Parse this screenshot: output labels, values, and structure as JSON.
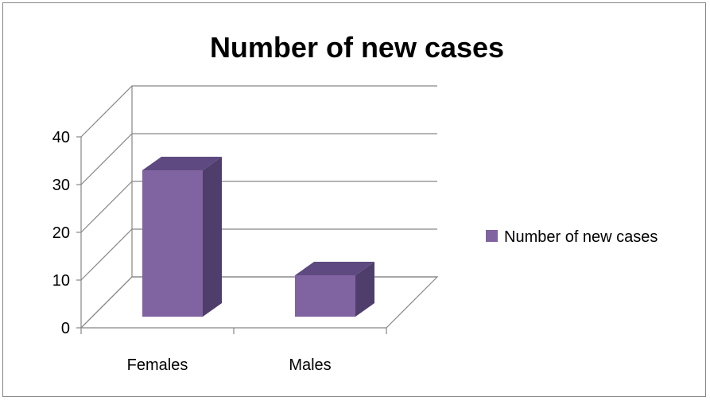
{
  "chart_data": {
    "type": "bar",
    "title": "Number of new cases",
    "categories": [
      "Females",
      "Males"
    ],
    "series": [
      {
        "name": "Number of new cases",
        "values": [
          31,
          9
        ],
        "color": "#8064A2"
      }
    ],
    "ylim": [
      0,
      40
    ],
    "yticks": [
      0,
      10,
      20,
      30,
      40
    ],
    "grid": true,
    "legend_position": "right",
    "style": "3d-column"
  }
}
